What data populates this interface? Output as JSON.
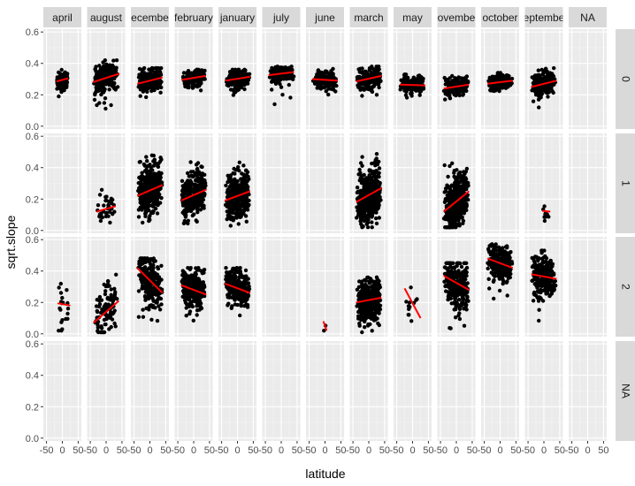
{
  "chart_data": {
    "type": "scatter",
    "xlabel": "latitude",
    "ylabel": "sqrt.slope",
    "ylim": [
      0,
      0.6
    ],
    "yticks": [
      "0.0",
      "0.2",
      "0.4",
      "0.6"
    ],
    "xticks": [
      "-50",
      "0",
      "50"
    ],
    "xlim": [
      -60,
      60
    ],
    "columns": [
      "april",
      "august",
      "ecembe",
      "february",
      "january",
      "july",
      "june",
      "march",
      "may",
      "ovembe",
      "october",
      "eptembe",
      "NA"
    ],
    "rows": [
      "0",
      "1",
      "2",
      "NA"
    ],
    "grid": true,
    "fit_line_color": "#ff0000",
    "point_color": "#000000",
    "panel_background": "#ebebeb",
    "strip_background": "#d9d9d9",
    "panels": [
      {
        "row": "0",
        "col": "april",
        "n": 150,
        "xr": [
          -18,
          18
        ],
        "mean": 0.29,
        "sd": 0.03,
        "low": 0.17,
        "high": 0.36,
        "fit": [
          0.285,
          0.305
        ]
      },
      {
        "row": "0",
        "col": "august",
        "n": 240,
        "xr": [
          -42,
          42
        ],
        "mean": 0.31,
        "sd": 0.045,
        "low": 0.09,
        "high": 0.42,
        "fit": [
          0.28,
          0.335
        ]
      },
      {
        "row": "0",
        "col": "ecembe",
        "n": 230,
        "xr": [
          -40,
          40
        ],
        "mean": 0.29,
        "sd": 0.035,
        "low": 0.16,
        "high": 0.37,
        "fit": [
          0.27,
          0.31
        ]
      },
      {
        "row": "0",
        "col": "february",
        "n": 190,
        "xr": [
          -38,
          38
        ],
        "mean": 0.31,
        "sd": 0.025,
        "low": 0.2,
        "high": 0.36,
        "fit": [
          0.295,
          0.32
        ]
      },
      {
        "row": "0",
        "col": "january",
        "n": 200,
        "xr": [
          -38,
          40
        ],
        "mean": 0.3,
        "sd": 0.03,
        "low": 0.19,
        "high": 0.36,
        "fit": [
          0.29,
          0.315
        ]
      },
      {
        "row": "0",
        "col": "july",
        "n": 170,
        "xr": [
          -40,
          40
        ],
        "mean": 0.34,
        "sd": 0.025,
        "low": 0.11,
        "high": 0.39,
        "fit": [
          0.325,
          0.345
        ]
      },
      {
        "row": "0",
        "col": "june",
        "n": 170,
        "xr": [
          -40,
          40
        ],
        "mean": 0.3,
        "sd": 0.028,
        "low": 0.2,
        "high": 0.37,
        "fit": [
          0.3,
          0.29
        ]
      },
      {
        "row": "0",
        "col": "march",
        "n": 200,
        "xr": [
          -40,
          40
        ],
        "mean": 0.3,
        "sd": 0.035,
        "low": 0.19,
        "high": 0.38,
        "fit": [
          0.285,
          0.32
        ]
      },
      {
        "row": "0",
        "col": "may",
        "n": 160,
        "xr": [
          -40,
          40
        ],
        "mean": 0.26,
        "sd": 0.025,
        "low": 0.18,
        "high": 0.33,
        "fit": [
          0.265,
          0.26
        ]
      },
      {
        "row": "0",
        "col": "ovembe",
        "n": 170,
        "xr": [
          -40,
          40
        ],
        "mean": 0.25,
        "sd": 0.028,
        "low": 0.17,
        "high": 0.32,
        "fit": [
          0.24,
          0.265
        ]
      },
      {
        "row": "0",
        "col": "october",
        "n": 180,
        "xr": [
          -40,
          40
        ],
        "mean": 0.28,
        "sd": 0.025,
        "low": 0.2,
        "high": 0.34,
        "fit": [
          0.27,
          0.29
        ]
      },
      {
        "row": "0",
        "col": "eptembe",
        "n": 210,
        "xr": [
          -40,
          40
        ],
        "mean": 0.27,
        "sd": 0.04,
        "low": 0.1,
        "high": 0.37,
        "fit": [
          0.25,
          0.29
        ]
      },
      {
        "row": "1",
        "col": "august",
        "n": 40,
        "xr": [
          -30,
          30
        ],
        "mean": 0.14,
        "sd": 0.05,
        "low": 0.05,
        "high": 0.28,
        "fit": [
          0.12,
          0.155
        ]
      },
      {
        "row": "1",
        "col": "ecembe",
        "n": 380,
        "xr": [
          -40,
          40
        ],
        "mean": 0.26,
        "sd": 0.07,
        "low": 0.05,
        "high": 0.48,
        "fit": [
          0.22,
          0.29
        ]
      },
      {
        "row": "1",
        "col": "february",
        "n": 330,
        "xr": [
          -40,
          40
        ],
        "mean": 0.23,
        "sd": 0.07,
        "low": 0.03,
        "high": 0.44,
        "fit": [
          0.19,
          0.26
        ]
      },
      {
        "row": "1",
        "col": "january",
        "n": 330,
        "xr": [
          -40,
          40
        ],
        "mean": 0.22,
        "sd": 0.07,
        "low": 0.03,
        "high": 0.46,
        "fit": [
          0.19,
          0.25
        ]
      },
      {
        "row": "1",
        "col": "march",
        "n": 420,
        "xr": [
          -40,
          40
        ],
        "mean": 0.22,
        "sd": 0.08,
        "low": 0.02,
        "high": 0.5,
        "fit": [
          0.18,
          0.27
        ]
      },
      {
        "row": "1",
        "col": "ovembe",
        "n": 400,
        "xr": [
          -40,
          40
        ],
        "mean": 0.18,
        "sd": 0.08,
        "low": 0.02,
        "high": 0.45,
        "fit": [
          0.12,
          0.25
        ]
      },
      {
        "row": "1",
        "col": "eptembe",
        "n": 10,
        "xr": [
          -5,
          20
        ],
        "mean": 0.12,
        "sd": 0.04,
        "low": 0.05,
        "high": 0.2,
        "fit": [
          0.125,
          0.12
        ]
      },
      {
        "row": "2",
        "col": "april",
        "n": 20,
        "xr": [
          -15,
          25
        ],
        "mean": 0.19,
        "sd": 0.08,
        "low": 0.02,
        "high": 0.36,
        "fit": [
          0.195,
          0.18
        ]
      },
      {
        "row": "2",
        "col": "august",
        "n": 110,
        "xr": [
          -40,
          40
        ],
        "mean": 0.13,
        "sd": 0.08,
        "low": 0.01,
        "high": 0.45,
        "fit": [
          0.07,
          0.21
        ]
      },
      {
        "row": "2",
        "col": "ecembe",
        "n": 260,
        "xr": [
          -40,
          40
        ],
        "mean": 0.35,
        "sd": 0.07,
        "low": 0.02,
        "high": 0.48,
        "fit": [
          0.42,
          0.26
        ]
      },
      {
        "row": "2",
        "col": "february",
        "n": 260,
        "xr": [
          -40,
          40
        ],
        "mean": 0.28,
        "sd": 0.06,
        "low": 0.07,
        "high": 0.42,
        "fit": [
          0.31,
          0.25
        ]
      },
      {
        "row": "2",
        "col": "january",
        "n": 260,
        "xr": [
          -40,
          40
        ],
        "mean": 0.29,
        "sd": 0.06,
        "low": 0.09,
        "high": 0.42,
        "fit": [
          0.32,
          0.26
        ]
      },
      {
        "row": "2",
        "col": "june",
        "n": 2,
        "xr": [
          -5,
          5
        ],
        "mean": 0.06,
        "sd": 0.03,
        "low": 0.02,
        "high": 0.1,
        "fit": [
          0.08,
          0.02
        ]
      },
      {
        "row": "2",
        "col": "march",
        "n": 400,
        "xr": [
          -40,
          40
        ],
        "mean": 0.21,
        "sd": 0.06,
        "low": 0.01,
        "high": 0.37,
        "fit": [
          0.2,
          0.23
        ]
      },
      {
        "row": "2",
        "col": "may",
        "n": 12,
        "xr": [
          -25,
          25
        ],
        "mean": 0.17,
        "sd": 0.08,
        "low": 0.05,
        "high": 0.32,
        "fit": [
          0.29,
          0.1
        ]
      },
      {
        "row": "2",
        "col": "ovembe",
        "n": 280,
        "xr": [
          -40,
          40
        ],
        "mean": 0.31,
        "sd": 0.08,
        "low": 0.03,
        "high": 0.45,
        "fit": [
          0.37,
          0.28
        ]
      },
      {
        "row": "2",
        "col": "october",
        "n": 260,
        "xr": [
          -40,
          40
        ],
        "mean": 0.44,
        "sd": 0.05,
        "low": 0.2,
        "high": 0.57,
        "fit": [
          0.48,
          0.42
        ]
      },
      {
        "row": "2",
        "col": "eptembe",
        "n": 230,
        "xr": [
          -40,
          40
        ],
        "mean": 0.35,
        "sd": 0.07,
        "low": 0.05,
        "high": 0.53,
        "fit": [
          0.38,
          0.35
        ]
      }
    ]
  }
}
